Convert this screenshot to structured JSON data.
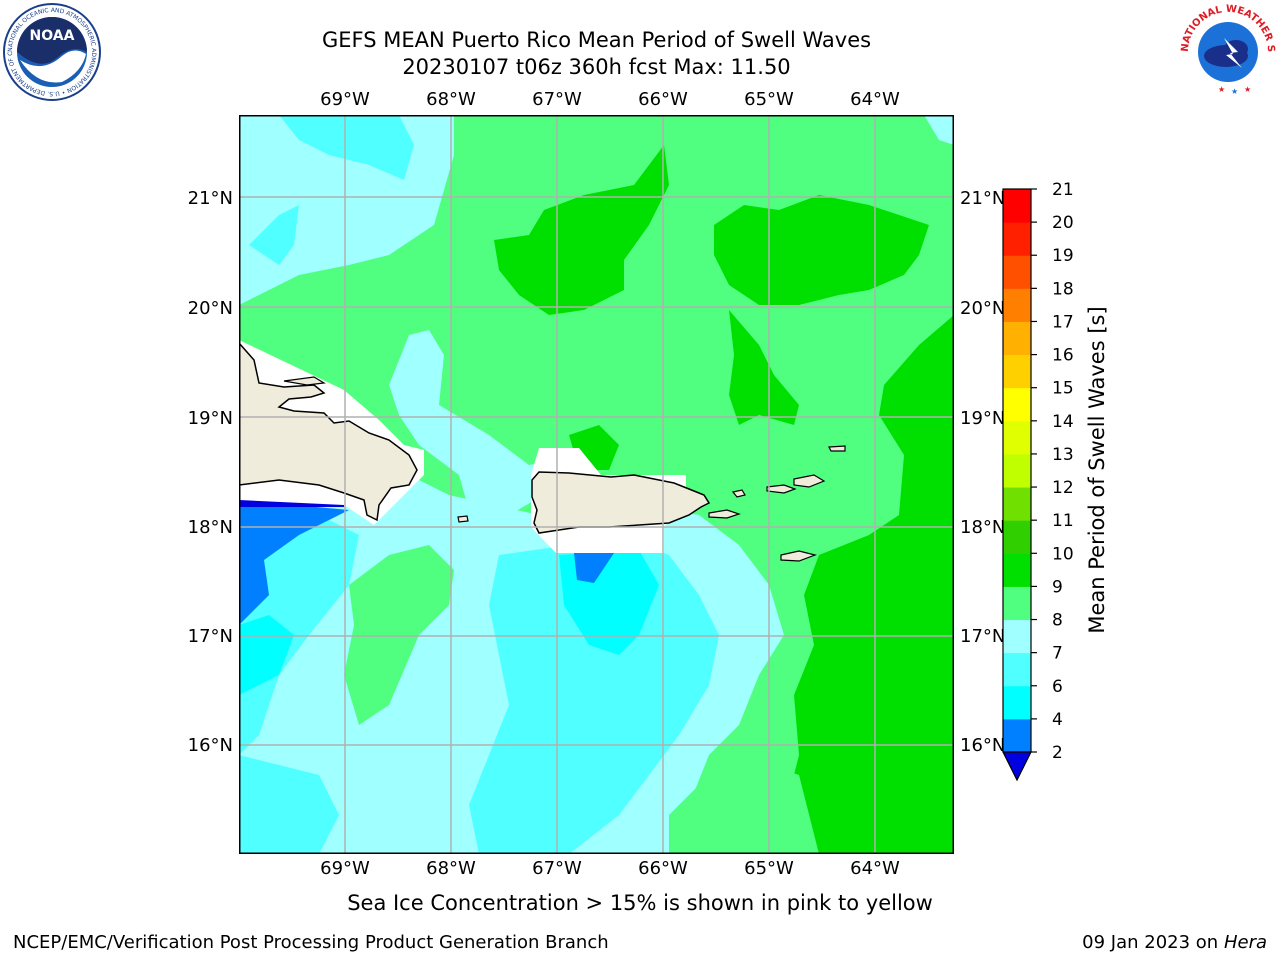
{
  "header": {
    "title_line1": "GEFS MEAN Puerto Rico Mean Period of Swell Waves",
    "title_line2": "20230107 t06z 360h fcst   Max: 11.50"
  },
  "map": {
    "lon_labels": [
      "69°W",
      "68°W",
      "67°W",
      "66°W",
      "65°W",
      "64°W"
    ],
    "lat_labels": [
      "21°N",
      "20°N",
      "19°N",
      "18°N",
      "17°N",
      "16°N"
    ],
    "land_color": "#efecdc",
    "mask_color": "#ffffff",
    "grid_color": "#b0b0b0"
  },
  "colorbar": {
    "label": "Mean Period of Swell Waves [s]",
    "ticks": [
      "2",
      "4",
      "6",
      "7",
      "8",
      "9",
      "10",
      "11",
      "12",
      "13",
      "14",
      "15",
      "16",
      "17",
      "18",
      "19",
      "20",
      "21"
    ],
    "colors": [
      "#0000e0",
      "#0080ff",
      "#00ffff",
      "#50ffff",
      "#a0ffff",
      "#50ff80",
      "#00e000",
      "#30d000",
      "#70e000",
      "#c0ff00",
      "#e0ff00",
      "#ffff00",
      "#ffd000",
      "#ffb000",
      "#ff8000",
      "#ff5000",
      "#ff2000",
      "#ff0000"
    ],
    "under_color": "#0000e0"
  },
  "logos": {
    "noaa_text": "NOAA",
    "noaa_ring": "NATIONAL OCEANIC AND ATMOSPHERIC ADMINISTRATION • U.S. DEPARTMENT OF COMMERCE",
    "nws_ring": "NATIONAL WEATHER SERVICE"
  },
  "footer": {
    "sea_ice_note": "Sea Ice Concentration > 15% is shown in pink to yellow",
    "left": "NCEP/EMC/Verification Post Processing Product Generation Branch",
    "right_date": "09 Jan 2023 on",
    "right_host": "Hera"
  }
}
